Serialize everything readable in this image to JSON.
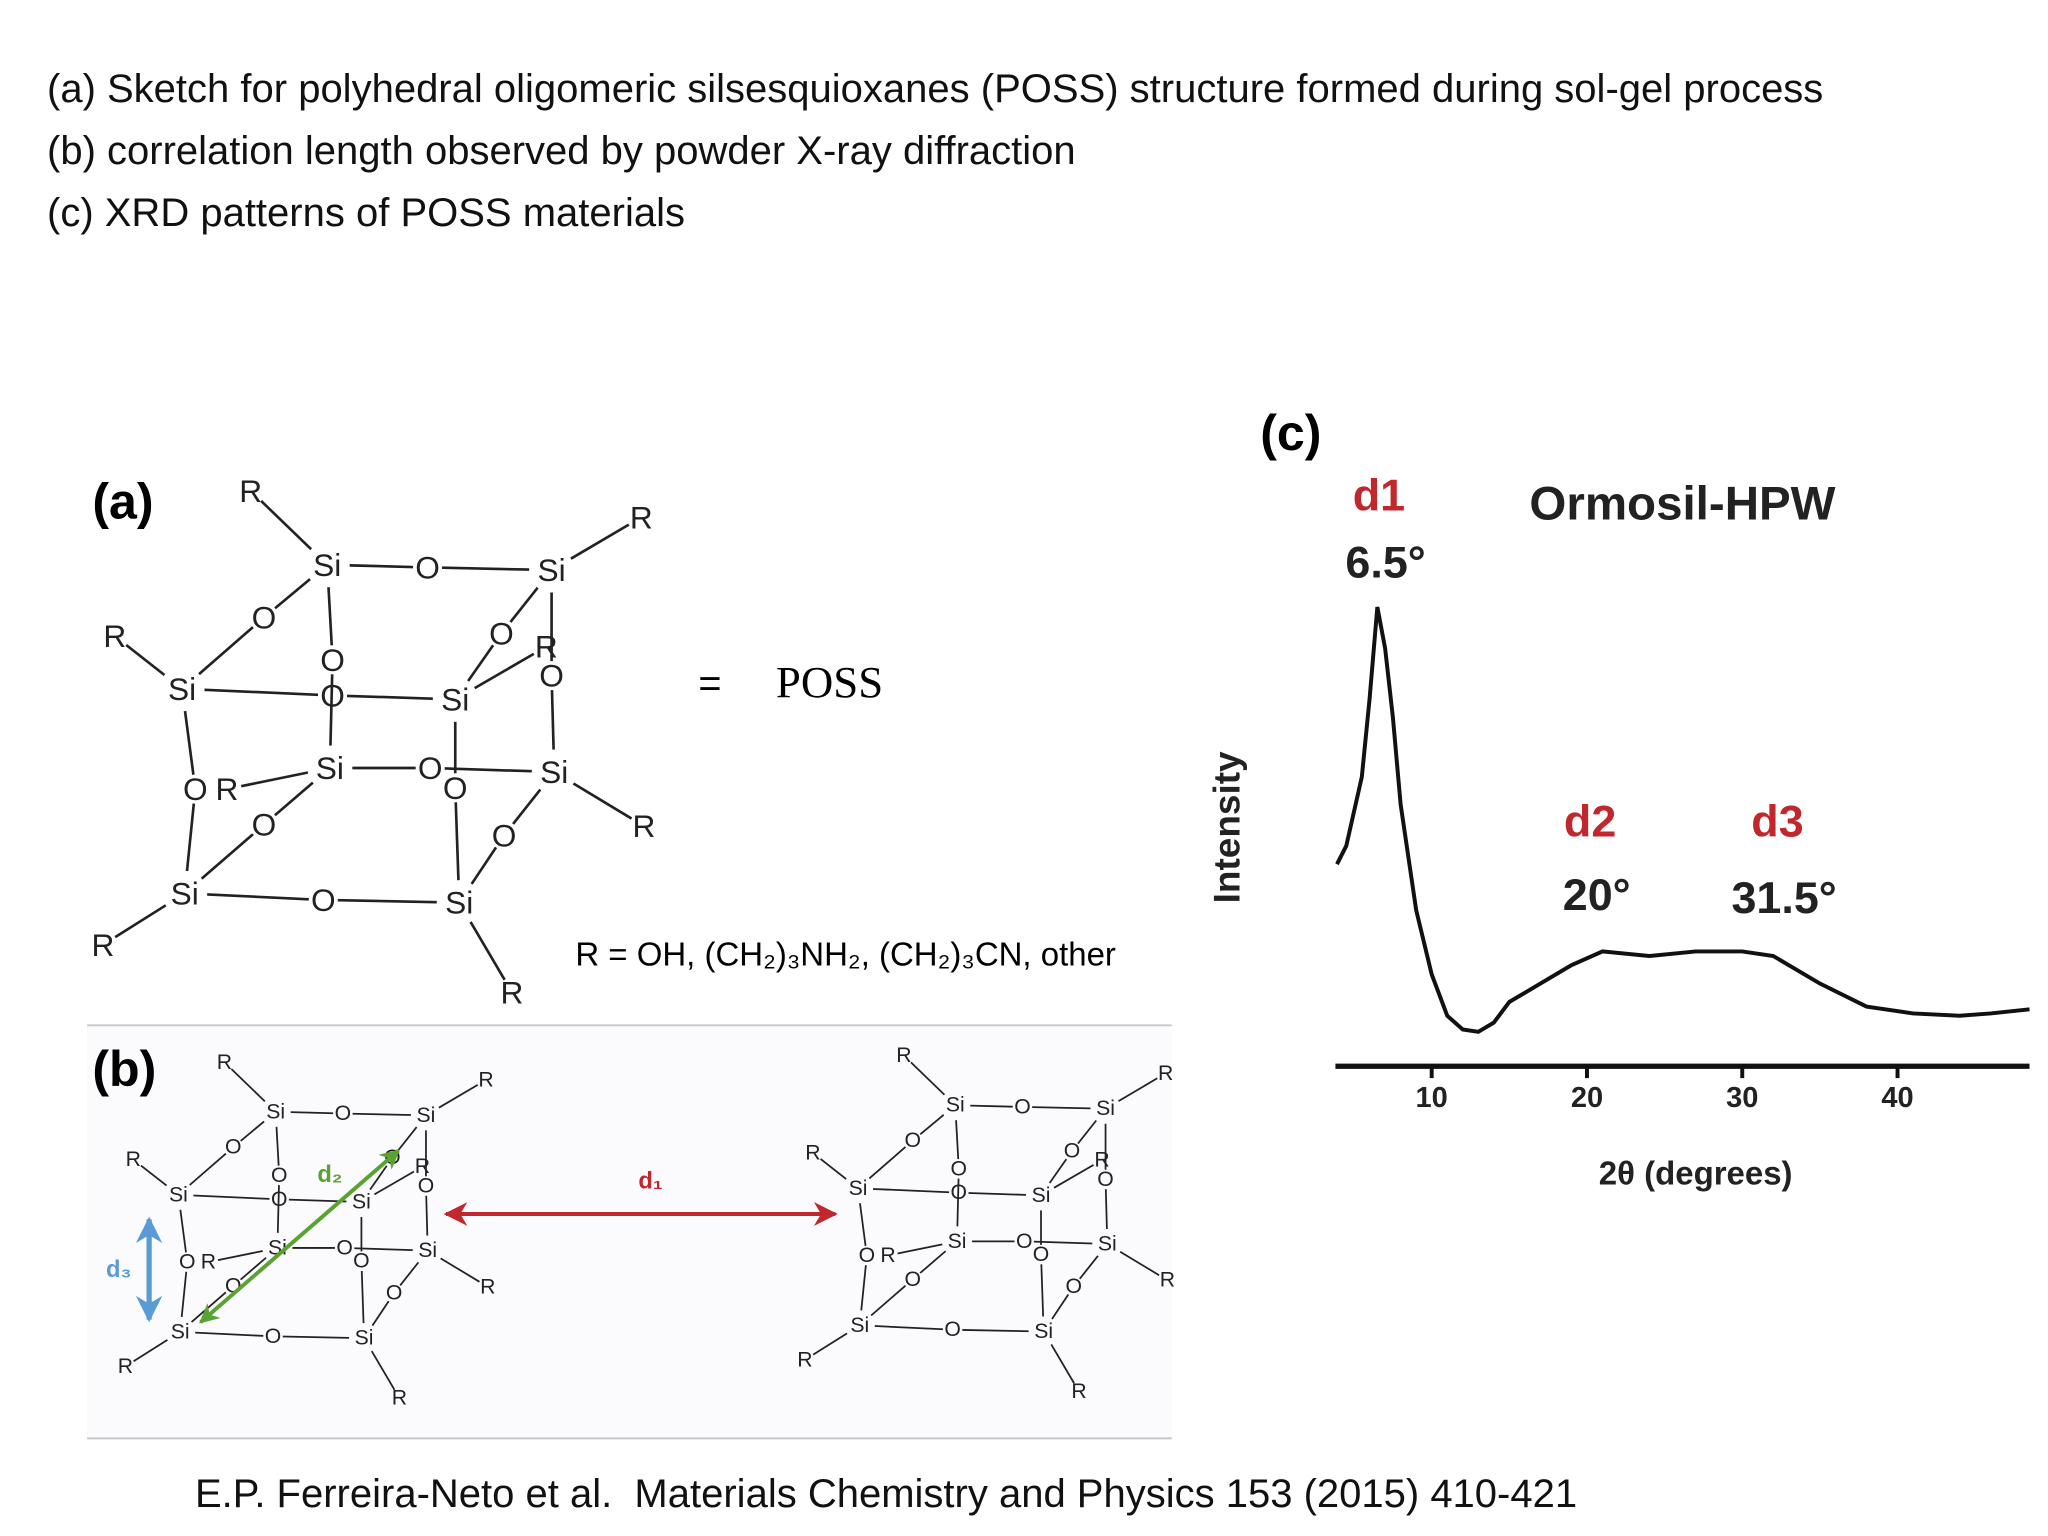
{
  "header": {
    "lines": [
      "(a) Sketch for polyhedral oligomeric silsesquioxanes (POSS) structure formed during sol-gel process",
      "(b) correlation length observed by powder X-ray diffraction",
      "(c) XRD patterns of POSS materials"
    ]
  },
  "molecule": {
    "atoms": [
      "Si",
      "Si",
      "Si",
      "Si",
      "Si",
      "Si",
      "Si",
      "Si",
      "O",
      "O",
      "O",
      "O",
      "O",
      "O",
      "O",
      "O",
      "O",
      "O",
      "O",
      "O",
      "R",
      "R",
      "R",
      "R",
      "R",
      "R",
      "R",
      "R"
    ]
  },
  "panel_a": {
    "label": "(a)",
    "equals": "=",
    "name": "POSS",
    "r_note": "R = OH, (CH₂)₃NH₂, (CH₂)₃CN, other"
  },
  "panel_b": {
    "label": "(b)",
    "d1": "d₁",
    "d2": "d₂",
    "d3": "d₃"
  },
  "panel_c": {
    "label": "(c)"
  },
  "chart_data": {
    "type": "line",
    "title": "Ormosil-HPW",
    "x_label": "2θ (degrees)",
    "y_label": "Intensity",
    "xlim": [
      3.8,
      48.5
    ],
    "ylim": [
      0,
      100
    ],
    "xticks": [
      10,
      20,
      30,
      40
    ],
    "color": "#111111",
    "x": [
      3.9,
      4.5,
      5.5,
      6.0,
      6.5,
      7.0,
      7.5,
      8.0,
      9.0,
      10,
      11,
      12,
      13,
      14,
      15,
      17,
      19,
      21,
      24,
      27,
      30,
      32,
      35,
      38,
      41,
      44,
      46,
      48.5
    ],
    "values": [
      44,
      48,
      63,
      80,
      100,
      91,
      76,
      57,
      34,
      20,
      11,
      8,
      7.5,
      9.5,
      14,
      18,
      22,
      25,
      24,
      25,
      25,
      24,
      18,
      13,
      11.5,
      11,
      11.5,
      12.4
    ],
    "annotations": [
      {
        "name": "d1",
        "angle": "6.5°"
      },
      {
        "name": "d2",
        "angle": "20°"
      },
      {
        "name": "d3",
        "angle": "31.5°"
      }
    ]
  },
  "footer": "E.P. Ferreira-Neto et al.  Materials Chemistry and Physics 153 (2015) 410-421"
}
